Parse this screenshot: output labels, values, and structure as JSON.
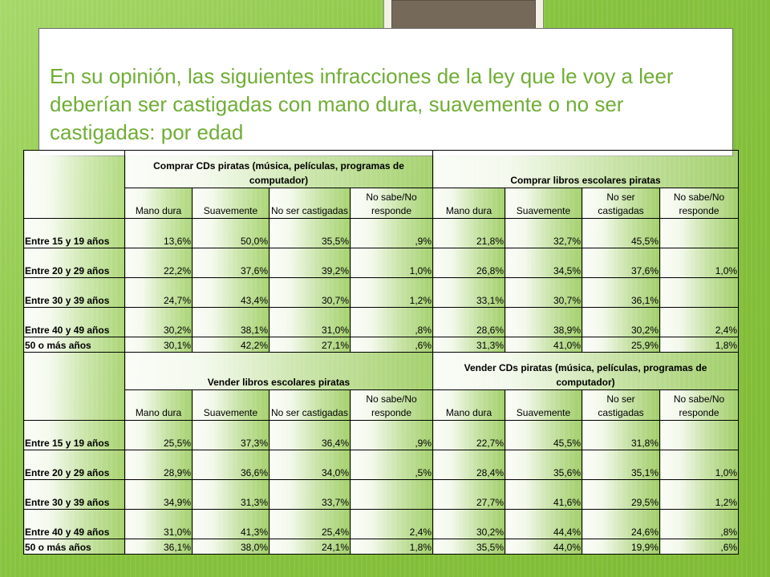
{
  "title": "En su opinión, las siguientes infracciones de la ley que le voy a leer deberían ser castigadas con mano dura, suavemente o no ser castigadas: por edad",
  "sub_headers": [
    "Mano dura",
    "Suavemente",
    "No ser castigadas",
    "No sabe/No responde",
    "Mano dura",
    "Suavemente",
    "No ser castigadas",
    "No sabe/No responde"
  ],
  "top": {
    "group1": "Comprar CDs piratas (música, películas, programas de computador)",
    "group2": "Comprar libros escolares piratas",
    "rows": [
      {
        "label": "Entre 15 y 19 años",
        "values": [
          "13,6%",
          "50,0%",
          "35,5%",
          ",9%",
          "21,8%",
          "32,7%",
          "45,5%",
          ""
        ]
      },
      {
        "label": "Entre 20 y 29 años",
        "values": [
          "22,2%",
          "37,6%",
          "39,2%",
          "1,0%",
          "26,8%",
          "34,5%",
          "37,6%",
          "1,0%"
        ]
      },
      {
        "label": "Entre 30 y 39 años",
        "values": [
          "24,7%",
          "43,4%",
          "30,7%",
          "1,2%",
          "33,1%",
          "30,7%",
          "36,1%",
          ""
        ]
      },
      {
        "label": "Entre 40 y 49 años",
        "values": [
          "30,2%",
          "38,1%",
          "31,0%",
          ",8%",
          "28,6%",
          "38,9%",
          "30,2%",
          "2,4%"
        ]
      },
      {
        "label": "50 o más años",
        "values": [
          "30,1%",
          "42,2%",
          "27,1%",
          ",6%",
          "31,3%",
          "41,0%",
          "25,9%",
          "1,8%"
        ]
      }
    ]
  },
  "bottom": {
    "group1": "Vender libros escolares piratas",
    "group2": "Vender CDs piratas (música, películas, programas de computador)",
    "rows": [
      {
        "label": "Entre 15 y 19 años",
        "values": [
          "25,5%",
          "37,3%",
          "36,4%",
          ",9%",
          "22,7%",
          "45,5%",
          "31,8%",
          ""
        ]
      },
      {
        "label": "Entre 20 y 29 años",
        "values": [
          "28,9%",
          "36,6%",
          "34,0%",
          ",5%",
          "28,4%",
          "35,6%",
          "35,1%",
          "1,0%"
        ]
      },
      {
        "label": "Entre 30 y 39 años",
        "values": [
          "34,9%",
          "31,3%",
          "33,7%",
          "",
          "27,7%",
          "41,6%",
          "29,5%",
          "1,2%"
        ]
      },
      {
        "label": "Entre 40 y 49 años",
        "values": [
          "31,0%",
          "41,3%",
          "25,4%",
          "2,4%",
          "30,2%",
          "44,4%",
          "24,6%",
          ",8%"
        ]
      },
      {
        "label": "50 o más años",
        "values": [
          "36,1%",
          "38,0%",
          "24,1%",
          "1,8%",
          "35,5%",
          "44,0%",
          "19,9%",
          ",6%"
        ]
      }
    ]
  },
  "colors": {
    "title": "#6fae36",
    "background": "#8fca4a",
    "frame_photo": "#756a5a"
  }
}
